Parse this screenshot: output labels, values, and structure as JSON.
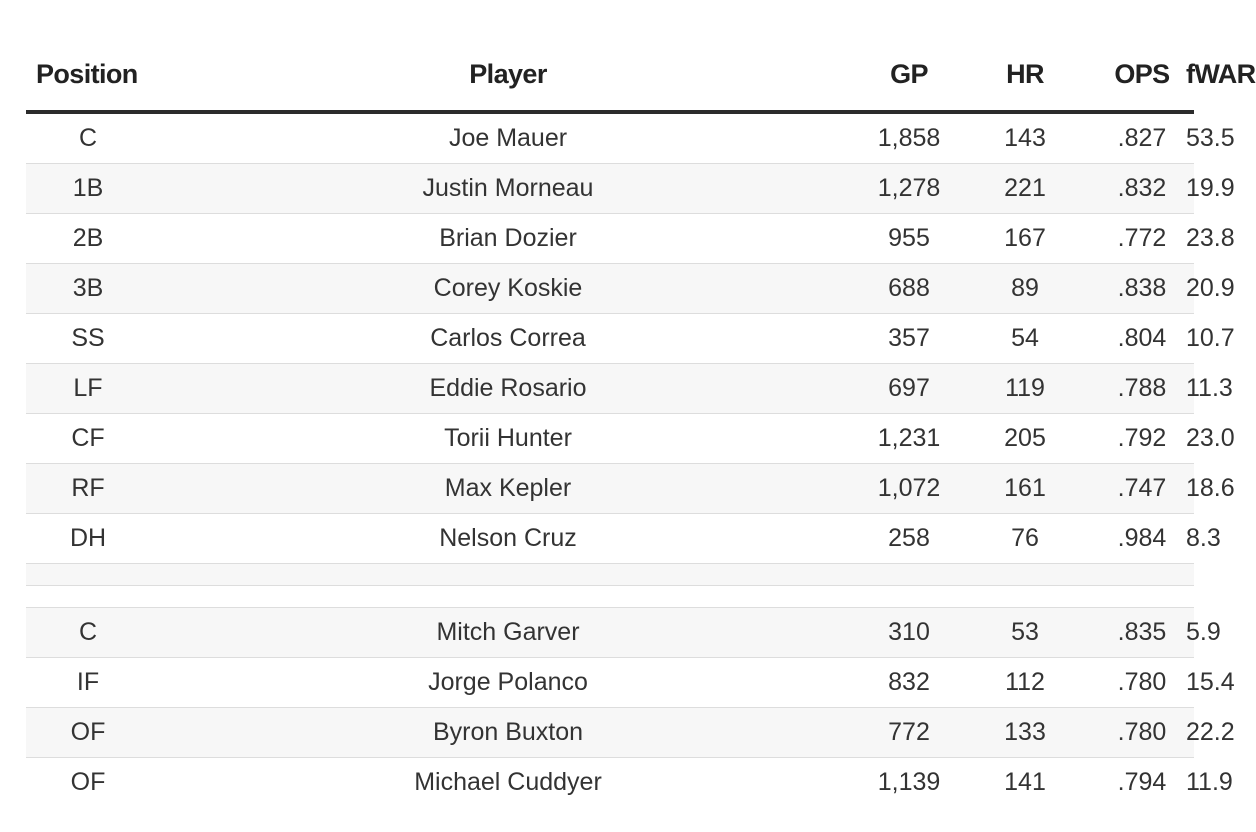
{
  "columns": {
    "position": "Position",
    "player": "Player",
    "gp": "GP",
    "hr": "HR",
    "ops": "OPS",
    "fwar": "fWAR"
  },
  "starters": [
    {
      "position": "C",
      "player": "Joe Mauer",
      "gp": "1,858",
      "hr": "143",
      "ops": ".827",
      "fwar": "53.5"
    },
    {
      "position": "1B",
      "player": "Justin Morneau",
      "gp": "1,278",
      "hr": "221",
      "ops": ".832",
      "fwar": "19.9"
    },
    {
      "position": "2B",
      "player": "Brian Dozier",
      "gp": "955",
      "hr": "167",
      "ops": ".772",
      "fwar": "23.8"
    },
    {
      "position": "3B",
      "player": "Corey Koskie",
      "gp": "688",
      "hr": "89",
      "ops": ".838",
      "fwar": "20.9"
    },
    {
      "position": "SS",
      "player": "Carlos Correa",
      "gp": "357",
      "hr": "54",
      "ops": ".804",
      "fwar": "10.7"
    },
    {
      "position": "LF",
      "player": "Eddie Rosario",
      "gp": "697",
      "hr": "119",
      "ops": ".788",
      "fwar": "11.3"
    },
    {
      "position": "CF",
      "player": "Torii Hunter",
      "gp": "1,231",
      "hr": "205",
      "ops": ".792",
      "fwar": "23.0"
    },
    {
      "position": "RF",
      "player": "Max Kepler",
      "gp": "1,072",
      "hr": "161",
      "ops": ".747",
      "fwar": "18.6"
    },
    {
      "position": "DH",
      "player": "Nelson Cruz",
      "gp": "258",
      "hr": "76",
      "ops": ".984",
      "fwar": "8.3"
    }
  ],
  "bench": [
    {
      "position": "C",
      "player": "Mitch Garver",
      "gp": "310",
      "hr": "53",
      "ops": ".835",
      "fwar": "5.9"
    },
    {
      "position": "IF",
      "player": "Jorge Polanco",
      "gp": "832",
      "hr": "112",
      "ops": ".780",
      "fwar": "15.4"
    },
    {
      "position": "OF",
      "player": "Byron Buxton",
      "gp": "772",
      "hr": "133",
      "ops": ".780",
      "fwar": "22.2"
    },
    {
      "position": "OF",
      "player": "Michael Cuddyer",
      "gp": "1,139",
      "hr": "141",
      "ops": ".794",
      "fwar": "11.9"
    }
  ]
}
